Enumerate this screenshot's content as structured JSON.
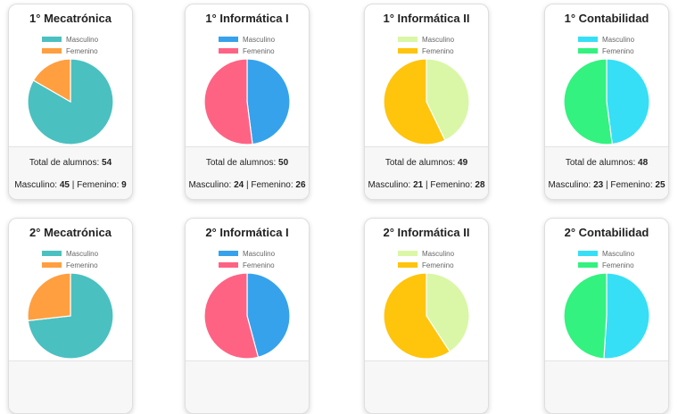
{
  "labels": {
    "total": "Total de alumnos:",
    "male": "Masculino:",
    "female": "Femenino:",
    "separator": "|"
  },
  "chart_data": [
    {
      "type": "pie",
      "title": "1° Mecatrónica",
      "categories": [
        "Masculino",
        "Femenino"
      ],
      "values": [
        45,
        9
      ],
      "colors": [
        "#4bc0c0",
        "#ff9f40"
      ],
      "total": 54
    },
    {
      "type": "pie",
      "title": "1° Informática I",
      "categories": [
        "Masculino",
        "Femenino"
      ],
      "values": [
        24,
        26
      ],
      "colors": [
        "#36a2eb",
        "#ff6384"
      ],
      "total": 50
    },
    {
      "type": "pie",
      "title": "1° Informática II",
      "categories": [
        "Masculino",
        "Femenino"
      ],
      "values": [
        21,
        28
      ],
      "colors": [
        "#d9f7a6",
        "#ffc40c"
      ],
      "total": 49
    },
    {
      "type": "pie",
      "title": "1° Contabilidad",
      "categories": [
        "Masculino",
        "Femenino"
      ],
      "values": [
        23,
        25
      ],
      "colors": [
        "#36dff5",
        "#33f27f"
      ],
      "total": 48
    },
    {
      "type": "pie",
      "title": "2° Mecatrónica",
      "categories": [
        "Masculino",
        "Femenino"
      ],
      "values": [
        41,
        15
      ],
      "colors": [
        "#4bc0c0",
        "#ff9f40"
      ]
    },
    {
      "type": "pie",
      "title": "2° Informática I",
      "categories": [
        "Masculino",
        "Femenino"
      ],
      "values": [
        22,
        26
      ],
      "colors": [
        "#36a2eb",
        "#ff6384"
      ]
    },
    {
      "type": "pie",
      "title": "2° Informática II",
      "categories": [
        "Masculino",
        "Femenino"
      ],
      "values": [
        20,
        29
      ],
      "colors": [
        "#d9f7a6",
        "#ffc40c"
      ]
    },
    {
      "type": "pie",
      "title": "2° Contabilidad",
      "categories": [
        "Masculino",
        "Femenino"
      ],
      "values": [
        25,
        24
      ],
      "colors": [
        "#36dff5",
        "#33f27f"
      ]
    }
  ]
}
